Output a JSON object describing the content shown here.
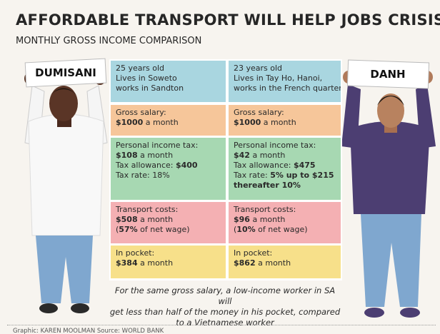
{
  "header": {
    "title": "AFFORDABLE TRANSPORT WILL HELP JOBS CRISIS",
    "subtitle": "MONTHLY GROSS INCOME COMPARISON"
  },
  "people": [
    {
      "name": "DUMISANI"
    },
    {
      "name": "DANH"
    }
  ],
  "table": {
    "columns": [
      {
        "cells": [
          {
            "lines": [
              [
                {
                  "t": "25 years old"
                }
              ],
              [
                {
                  "t": "Lives in Soweto"
                }
              ],
              [
                {
                  "t": "works in Sandton"
                }
              ]
            ]
          },
          {
            "lines": [
              [
                {
                  "t": "Gross salary:"
                }
              ],
              [
                {
                  "t": "$1000",
                  "b": true
                },
                {
                  "t": " a month"
                }
              ]
            ]
          },
          {
            "lines": [
              [
                {
                  "t": "Personal income tax:"
                }
              ],
              [
                {
                  "t": "$108",
                  "b": true
                },
                {
                  "t": " a month"
                }
              ],
              [
                {
                  "t": "Tax allowance: "
                },
                {
                  "t": "$400",
                  "b": true
                }
              ],
              [
                {
                  "t": "Tax rate: 18%"
                }
              ]
            ]
          },
          {
            "lines": [
              [
                {
                  "t": "Transport costs:"
                }
              ],
              [
                {
                  "t": "$508",
                  "b": true
                },
                {
                  "t": " a month"
                }
              ],
              [
                {
                  "t": "("
                },
                {
                  "t": "57%",
                  "b": true
                },
                {
                  "t": " of net wage)"
                }
              ]
            ]
          },
          {
            "lines": [
              [
                {
                  "t": "In pocket:"
                }
              ],
              [
                {
                  "t": "$384",
                  "b": true
                },
                {
                  "t": " a month"
                }
              ]
            ]
          }
        ]
      },
      {
        "cells": [
          {
            "lines": [
              [
                {
                  "t": "23 years old"
                }
              ],
              [
                {
                  "t": "Lives in Tay Ho, Hanoi,"
                }
              ],
              [
                {
                  "t": "works in the French quarter"
                }
              ]
            ]
          },
          {
            "lines": [
              [
                {
                  "t": "Gross salary:"
                }
              ],
              [
                {
                  "t": "$1000",
                  "b": true
                },
                {
                  "t": " a month"
                }
              ]
            ]
          },
          {
            "lines": [
              [
                {
                  "t": "Personal income tax:"
                }
              ],
              [
                {
                  "t": "$42",
                  "b": true
                },
                {
                  "t": " a month"
                }
              ],
              [
                {
                  "t": "Tax allowance: "
                },
                {
                  "t": "$475",
                  "b": true
                }
              ],
              [
                {
                  "t": "Tax rate: "
                },
                {
                  "t": "5% up to $215",
                  "b": true
                }
              ],
              [
                {
                  "t": "thereafter 10%",
                  "b": true
                }
              ]
            ]
          },
          {
            "lines": [
              [
                {
                  "t": "Transport costs:"
                }
              ],
              [
                {
                  "t": "$96",
                  "b": true
                },
                {
                  "t": " a month"
                }
              ],
              [
                {
                  "t": "("
                },
                {
                  "t": "10%",
                  "b": true
                },
                {
                  "t": " of net wage)"
                }
              ]
            ]
          },
          {
            "lines": [
              [
                {
                  "t": "In pocket:"
                }
              ],
              [
                {
                  "t": "$862",
                  "b": true
                },
                {
                  "t": " a month"
                }
              ]
            ]
          }
        ]
      }
    ]
  },
  "caption": [
    "For the same gross salary, a low-income worker in SA will",
    "get less than half of the money in his pocket, compared",
    "to a Vietnamese worker"
  ],
  "credit": "Graphic: KAREN MOOLMAN  Source: WORLD BANK"
}
